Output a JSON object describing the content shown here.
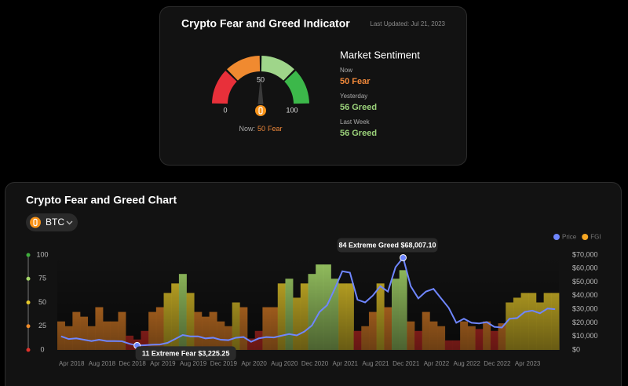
{
  "indicator": {
    "title": "Crypto Fear and Greed Indicator",
    "updated": "Last Updated: Jul 21, 2023",
    "gauge": {
      "min": 0,
      "mid": 50,
      "max": 100,
      "value": 50,
      "caption": "Now:",
      "status": "Fear",
      "color": "#f0883a"
    },
    "sentiment": {
      "title": "Market Sentiment",
      "rows": [
        {
          "label": "Now",
          "value": 50,
          "status": "Fear",
          "color": "#f0883a"
        },
        {
          "label": "Yesterday",
          "value": 56,
          "status": "Greed",
          "color": "#9bd27a"
        },
        {
          "label": "Last Week",
          "value": 56,
          "status": "Greed",
          "color": "#9bd27a"
        }
      ]
    }
  },
  "chart_data": {
    "type": "bar_line",
    "title": "Crypto Fear and Greed Chart",
    "selector": "BTC",
    "categories": [
      null,
      null,
      "Apr 2018",
      null,
      null,
      null,
      "Aug 2018",
      null,
      null,
      null,
      "Dec 2018",
      null,
      null,
      null,
      "Apr 2019",
      null,
      null,
      null,
      "Aug 2019",
      null,
      null,
      null,
      "Dec 2019",
      null,
      null,
      null,
      "Apr 2020",
      null,
      null,
      null,
      "Aug 2020",
      null,
      null,
      null,
      "Dec 2020",
      null,
      null,
      null,
      "Apr 2021",
      null,
      null,
      null,
      "Aug 2021",
      null,
      null,
      null,
      "Dec 2021",
      null,
      null,
      null,
      "Apr 2022",
      null,
      null,
      null,
      "Aug 2022",
      null,
      null,
      null,
      "Dec 2022",
      null,
      null,
      null,
      "Apr 2023",
      null,
      null,
      null
    ],
    "series": [
      {
        "name": "Price",
        "color": "#6f86ff",
        "axis": "y2",
        "values": [
          10000,
          8000,
          8500,
          7500,
          6500,
          7500,
          6500,
          6500,
          6400,
          4500,
          3225.25,
          3500,
          3800,
          4000,
          5200,
          8000,
          11000,
          10000,
          10000,
          8500,
          9000,
          7500,
          7200,
          9000,
          9500,
          6000,
          8500,
          9500,
          9200,
          10500,
          11700,
          10700,
          13500,
          18000,
          28000,
          33000,
          45000,
          58000,
          57000,
          37000,
          35000,
          40000,
          47000,
          43000,
          61000,
          68007.1,
          47000,
          38000,
          43000,
          45000,
          38000,
          31000,
          20000,
          23000,
          20000,
          19500,
          20500,
          17000,
          16500,
          23000,
          23500,
          28000,
          29000,
          27000,
          30500,
          30000
        ]
      },
      {
        "name": "FGI",
        "color": "#f5a623",
        "values": [
          30,
          25,
          40,
          35,
          25,
          45,
          30,
          30,
          40,
          15,
          11,
          20,
          40,
          45,
          60,
          70,
          80,
          60,
          40,
          35,
          40,
          30,
          25,
          50,
          45,
          12,
          20,
          45,
          45,
          70,
          75,
          55,
          70,
          80,
          90,
          90,
          75,
          70,
          70,
          20,
          25,
          40,
          70,
          45,
          75,
          84,
          30,
          20,
          40,
          30,
          25,
          10,
          10,
          30,
          25,
          22,
          30,
          20,
          28,
          50,
          55,
          60,
          60,
          50,
          60,
          60
        ]
      }
    ],
    "ylim": [
      0,
      100
    ],
    "yticks": [
      0,
      25,
      50,
      75,
      100
    ],
    "ytick_colors": [
      "#e0312a",
      "#ee8a2a",
      "#e6c92a",
      "#a6d86a",
      "#3fae3c"
    ],
    "y2lim": [
      0,
      70000
    ],
    "y2ticks": [
      {
        "value": 0,
        "label": "$0"
      },
      {
        "value": 10000,
        "label": "$10,000"
      },
      {
        "value": 20000,
        "label": "$20,000"
      },
      {
        "value": 30000,
        "label": "$30,000"
      },
      {
        "value": 40000,
        "label": "$40,000"
      },
      {
        "value": 50000,
        "label": "$50,000"
      },
      {
        "value": 60000,
        "label": "$60,000"
      },
      {
        "value": 70000,
        "label": "$70,000"
      }
    ],
    "annotations": [
      "84 Extreme Greed $68,007.10",
      "11 Extreme Fear $3,225.25"
    ],
    "legend": "top-right"
  }
}
